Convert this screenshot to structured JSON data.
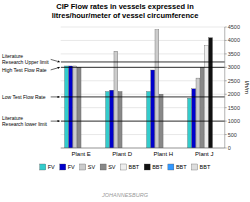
{
  "chart_data": {
    "type": "bar",
    "title": "CIP Flow rates in vessels expressed in\nlitres/hour/meter of vessel circumference",
    "ylabel": "l/h/m",
    "categories": [
      "Plant E",
      "Plant D",
      "Plant H",
      "Plant J"
    ],
    "series": [
      {
        "name": "FV",
        "color": "#33CCCC",
        "values": [
          3050,
          2100,
          2100,
          1850
        ]
      },
      {
        "name": "FV",
        "color": "#0000CC",
        "values": [
          3050,
          2150,
          2900,
          2200
        ]
      },
      {
        "name": "SV",
        "color": "#CCCCCC",
        "values": [
          3050,
          3600,
          4400,
          2600
        ]
      },
      {
        "name": "SV",
        "color": "#888888",
        "values": [
          3000,
          2100,
          2000,
          3000
        ]
      },
      {
        "name": "BBT",
        "color": "#EEEEEE",
        "values": [
          0,
          0,
          0,
          3800
        ]
      },
      {
        "name": "BBT",
        "color": "#111111",
        "values": [
          0,
          0,
          0,
          4100
        ]
      },
      {
        "name": "BBT",
        "color": "#3399FF",
        "values": [
          0,
          0,
          0,
          0
        ]
      },
      {
        "name": "BBT",
        "color": "#DDDDDD",
        "values": [
          0,
          0,
          0,
          0
        ]
      }
    ],
    "ylim": [
      0,
      4500
    ],
    "yticks": [
      0,
      500,
      1000,
      1500,
      2000,
      2500,
      3000,
      3500,
      4000,
      4500
    ],
    "grid": true,
    "legend": "bottom",
    "annotations": [
      {
        "text": "Literature\nResearch Upper limit",
        "y": 3200
      },
      {
        "text": "High Test Flow Rate",
        "y": 3000
      },
      {
        "text": "Low Test Flow Rate",
        "y": 1900
      },
      {
        "text": "Literature\nResearch lower limit",
        "y": 1000
      },
      {
        "text": "JOHANNESBURG"
      }
    ]
  }
}
